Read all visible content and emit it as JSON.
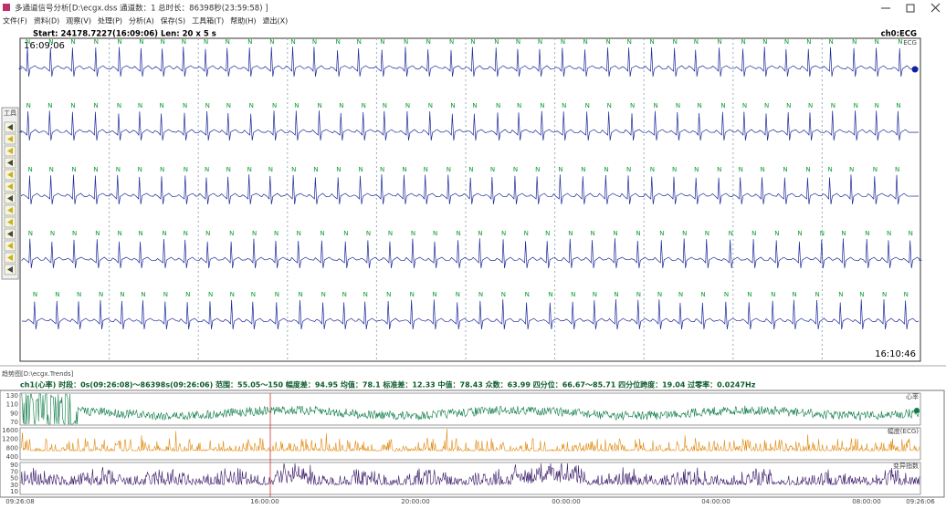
{
  "window": {
    "title": "多通道信号分析[D:\\ecgx.dss 通道数：1  总时长：86398秒(23:59:58) ]",
    "menu": [
      "文件(F)",
      "资料(D)",
      "观察(V)",
      "处理(P)",
      "分析(A)",
      "保存(S)",
      "工具箱(T)",
      "帮助(H)",
      "退出(X)"
    ]
  },
  "ecg": {
    "header": "Start: 24178.7227(16:09:06)  Len: 20 x 5 s",
    "channel": "ch0:ECG",
    "lead": "ECG",
    "start_time": "16:09:06",
    "end_time": "16:10:46",
    "beat_label": "N",
    "toolbar_title": "工具"
  },
  "trends": {
    "title": "趋势图[D:\\ecgx.Trends]",
    "stats": "ch1(心率)  时段：0s(09:26:08)～86398s(09:26:06)  范围：55.05～150  幅度差：94.95  均值：78.1  标准差：12.33  中值：78.43  众数：63.99  四分位：66.67～85.71  四分位跨度：19.04  过零率：0.0247Hz",
    "tracks": [
      {
        "label": "心率",
        "color": "#0b7a45",
        "yticks": [
          130,
          110,
          90,
          70
        ]
      },
      {
        "label": "幅度(ECG)",
        "color": "#e08a10",
        "yticks": [
          1600,
          1200,
          800,
          400
        ]
      },
      {
        "label": "变异指数",
        "color": "#3a1a6a",
        "yticks": [
          90,
          70,
          50,
          30,
          10
        ]
      }
    ],
    "time_labels": [
      "09:26:08",
      "16:00:00",
      "20:00:00",
      "00:00:00",
      "04:00:00",
      "08:00:00",
      "09:26:06"
    ]
  }
}
